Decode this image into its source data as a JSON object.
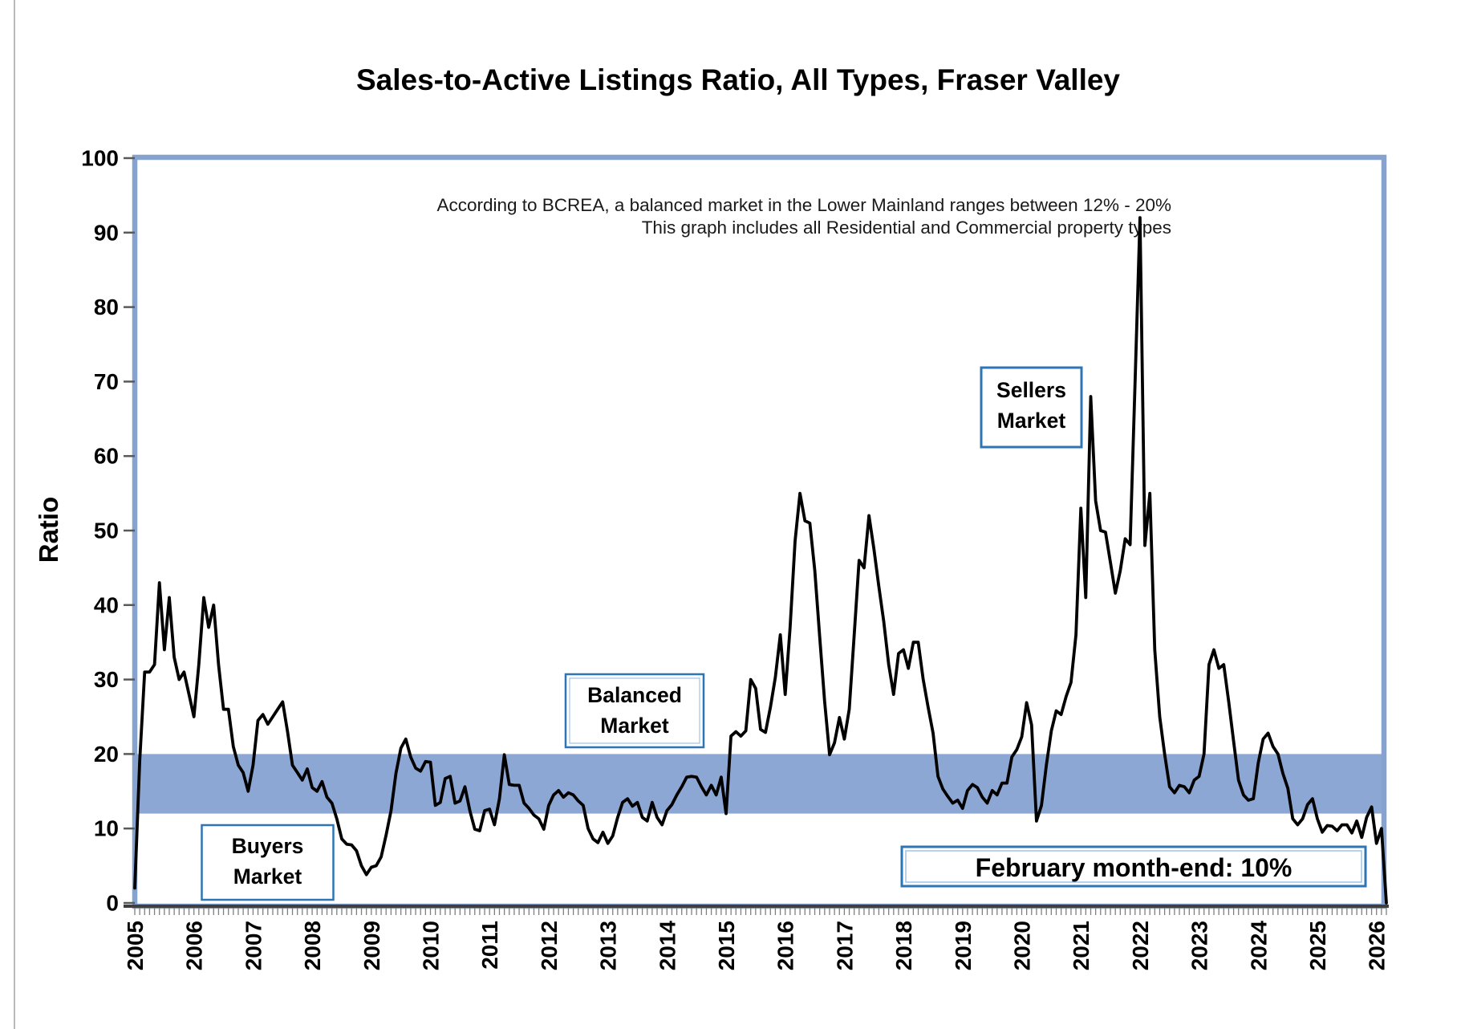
{
  "title": "Sales-to-Active Listings Ratio, All Types, Fraser Valley",
  "annotation": {
    "line1": "According to BCREA, a balanced market in the Lower Mainland ranges between 12% - 20%",
    "line2": "This graph includes all Residential and Commercial property types"
  },
  "y_axis": {
    "label": "Ratio",
    "ticks": [
      0,
      10,
      20,
      30,
      40,
      50,
      60,
      70,
      80,
      90,
      100
    ]
  },
  "x_axis": {
    "years": [
      2005,
      2006,
      2007,
      2008,
      2009,
      2010,
      2011,
      2012,
      2013,
      2014,
      2015,
      2016,
      2017,
      2018,
      2019,
      2020,
      2021,
      2022,
      2023,
      2024,
      2025,
      2026
    ]
  },
  "band": {
    "label": "balanced-market-band",
    "from": 12,
    "to": 20,
    "color": "#8DA7D4"
  },
  "boxes": {
    "buyers": {
      "line1": "Buyers",
      "line2": "Market"
    },
    "balanced": {
      "line1": "Balanced",
      "line2": "Market"
    },
    "sellers": {
      "line1": "Sellers",
      "line2": "Market"
    },
    "callout": {
      "text": "February month-end: 10%"
    }
  },
  "colors": {
    "frame_blue": "#85A3CE",
    "box_border_blue": "#2E75B6",
    "box_inner_blue": "#9DC3E6",
    "series_line": "#000000",
    "axis_dark": "#3F3F3F",
    "tick_gray": "#808080",
    "band_blue": "#8DA7D4"
  },
  "chart_data": {
    "type": "line",
    "title": "Sales-to-Active Listings Ratio, All Types, Fraser Valley",
    "xlabel": "",
    "ylabel": "Ratio",
    "unit": "%",
    "ylim": [
      0,
      100
    ],
    "x_range": [
      "2005-01",
      "2026-02"
    ],
    "grid": false,
    "legend_position": "none",
    "balanced_band": [
      12,
      20
    ],
    "final_value_label": "February month-end: 10%",
    "final_drop_to_zero": true,
    "series": [
      {
        "name": "Sales-to-Active Listings Ratio (monthly)",
        "years": [
          {
            "year": 2005,
            "values": [
              2,
              19,
              31,
              31,
              32,
              43,
              34,
              41,
              33,
              30,
              31,
              28
            ]
          },
          {
            "year": 2006,
            "values": [
              25,
              32,
              41,
              37,
              40,
              32,
              26,
              26,
              21,
              18.5,
              17.5,
              15
            ]
          },
          {
            "year": 2007,
            "values": [
              18.5,
              24.5,
              25.3,
              24,
              25,
              26,
              27,
              23,
              18.5,
              17.5,
              16.5,
              18
            ]
          },
          {
            "year": 2008,
            "values": [
              15.5,
              15,
              16.3,
              14.2,
              13.4,
              11.3,
              8.6,
              7.9,
              7.8,
              7,
              5,
              3.8
            ]
          },
          {
            "year": 2009,
            "values": [
              4.8,
              5,
              6.2,
              9.1,
              12.4,
              17.4,
              20.8,
              22,
              19.6,
              18.1,
              17.7,
              19
            ]
          },
          {
            "year": 2010,
            "values": [
              18.9,
              13.1,
              13.5,
              16.7,
              17,
              13.4,
              13.7,
              15.6,
              12.4,
              9.9,
              9.7,
              12.4
            ]
          },
          {
            "year": 2011,
            "values": [
              12.6,
              10.5,
              14,
              19.9,
              15.9,
              15.8,
              15.8,
              13.4,
              12.7,
              11.8,
              11.3,
              9.9
            ]
          },
          {
            "year": 2012,
            "values": [
              13.1,
              14.5,
              15.1,
              14.2,
              14.8,
              14.5,
              13.7,
              13.1,
              10,
              8.6,
              8.1,
              9.5
            ]
          },
          {
            "year": 2013,
            "values": [
              8,
              9,
              11.5,
              13.5,
              14,
              13,
              13.5,
              11.5,
              11,
              13.5,
              11.5,
              10.5
            ]
          },
          {
            "year": 2014,
            "values": [
              12.4,
              13.2,
              14.5,
              15.6,
              16.9,
              17,
              16.9,
              15.6,
              14.5,
              15.8,
              14.5,
              16.9
            ]
          },
          {
            "year": 2015,
            "values": [
              12,
              22.4,
              23,
              22.4,
              23.1,
              30,
              28.8,
              23.3,
              22.9,
              26.3,
              30.3,
              36
            ]
          },
          {
            "year": 2016,
            "values": [
              28,
              37,
              48.6,
              55,
              51.3,
              51,
              44.6,
              35.7,
              27.1,
              19.9,
              21.5,
              24.9
            ]
          },
          {
            "year": 2017,
            "values": [
              22,
              26,
              36,
              46,
              45,
              52,
              47.5,
              42.5,
              37.8,
              32,
              28,
              33.5
            ]
          },
          {
            "year": 2018,
            "values": [
              34,
              31.5,
              35,
              35,
              30,
              26.3,
              22.8,
              17,
              15.3,
              14.3,
              13.4,
              13.8
            ]
          },
          {
            "year": 2019,
            "values": [
              12.7,
              15.1,
              15.9,
              15.5,
              14.2,
              13.4,
              15.1,
              14.5,
              16.1,
              16.1,
              19.6,
              20.6
            ]
          },
          {
            "year": 2020,
            "values": [
              22.3,
              26.9,
              23.9,
              11,
              13.1,
              18.5,
              23.1,
              25.8,
              25.3,
              27.7,
              29.6,
              36
            ]
          },
          {
            "year": 2021,
            "values": [
              53,
              41,
              68,
              54,
              50,
              49.8,
              45.7,
              41.6,
              44.6,
              48.9,
              48.1,
              70
            ]
          },
          {
            "year": 2022,
            "values": [
              92,
              48,
              55,
              34,
              25,
              20,
              15.6,
              14.8,
              15.8,
              15.6,
              14.8,
              16.5
            ]
          },
          {
            "year": 2023,
            "values": [
              17,
              20,
              32,
              34,
              31.5,
              32,
              27,
              21.7,
              16.5,
              14.5,
              13.8,
              14
            ]
          },
          {
            "year": 2024,
            "values": [
              18.8,
              22,
              22.8,
              21,
              20,
              17.4,
              15.4,
              11.3,
              10.5,
              11.3,
              13.2,
              14
            ]
          },
          {
            "year": 2025,
            "values": [
              11.3,
              9.5,
              10.4,
              10.3,
              9.7,
              10.5,
              10.5,
              9.4,
              11,
              8.8,
              11.5,
              12.9
            ]
          },
          {
            "year": 2026,
            "values": [
              8,
              10
            ]
          }
        ]
      }
    ]
  }
}
